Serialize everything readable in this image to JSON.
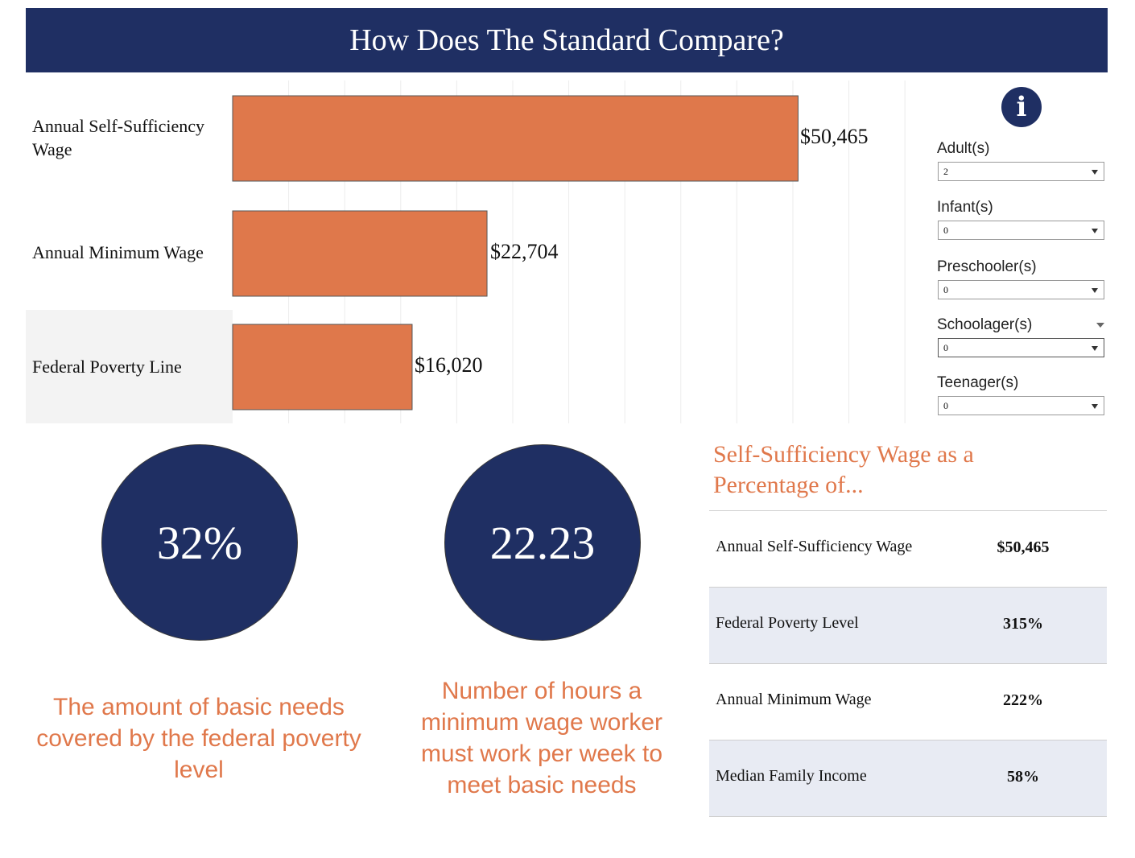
{
  "header": {
    "title": "How Does The Standard Compare?"
  },
  "chart_data": {
    "type": "bar",
    "orientation": "horizontal",
    "categories": [
      "Annual Self-Sufficiency Wage",
      "Annual Minimum Wage",
      "Federal Poverty Line"
    ],
    "values": [
      50465,
      22704,
      16020
    ],
    "value_labels": [
      "$50,465",
      "$22,704",
      "$16,020"
    ],
    "xlim": [
      0,
      62000
    ],
    "grid": true,
    "bar_color": "#df784b"
  },
  "chart_labels": {
    "self_sufficiency_line1": "Annual Self-Sufficiency",
    "self_sufficiency_line2": "Wage",
    "minimum_wage": "Annual Minimum Wage",
    "poverty_line": "Federal Poverty Line"
  },
  "filters": {
    "info_icon": "info-icon",
    "items": [
      {
        "label": "Adult(s)",
        "value": "2"
      },
      {
        "label": "Infant(s)",
        "value": "0"
      },
      {
        "label": "Preschooler(s)",
        "value": "0"
      },
      {
        "label": "Schoolager(s)",
        "value": "0"
      },
      {
        "label": "Teenager(s)",
        "value": "0"
      }
    ]
  },
  "kpis": [
    {
      "value": "32%",
      "caption_lines": [
        "The amount of basic needs",
        "covered by the federal poverty",
        "level"
      ]
    },
    {
      "value": "22.23",
      "caption_lines": [
        "Number of hours a",
        "minimum wage worker",
        "must work per week to",
        "meet basic needs"
      ]
    }
  ],
  "percent_table": {
    "title_line1": "Self-Sufficiency Wage as a",
    "title_line2": "Percentage of...",
    "rows": [
      {
        "label": "Annual Self-Sufficiency Wage",
        "value": "$50,465"
      },
      {
        "label": "Federal Poverty Level",
        "value": "315%"
      },
      {
        "label": "Annual Minimum Wage",
        "value": "222%"
      },
      {
        "label": "Median Family Income",
        "value": "58%"
      }
    ]
  },
  "colors": {
    "navy": "#1f2f63",
    "orange": "#e0784b",
    "row_shade": "#e8ebf3"
  }
}
